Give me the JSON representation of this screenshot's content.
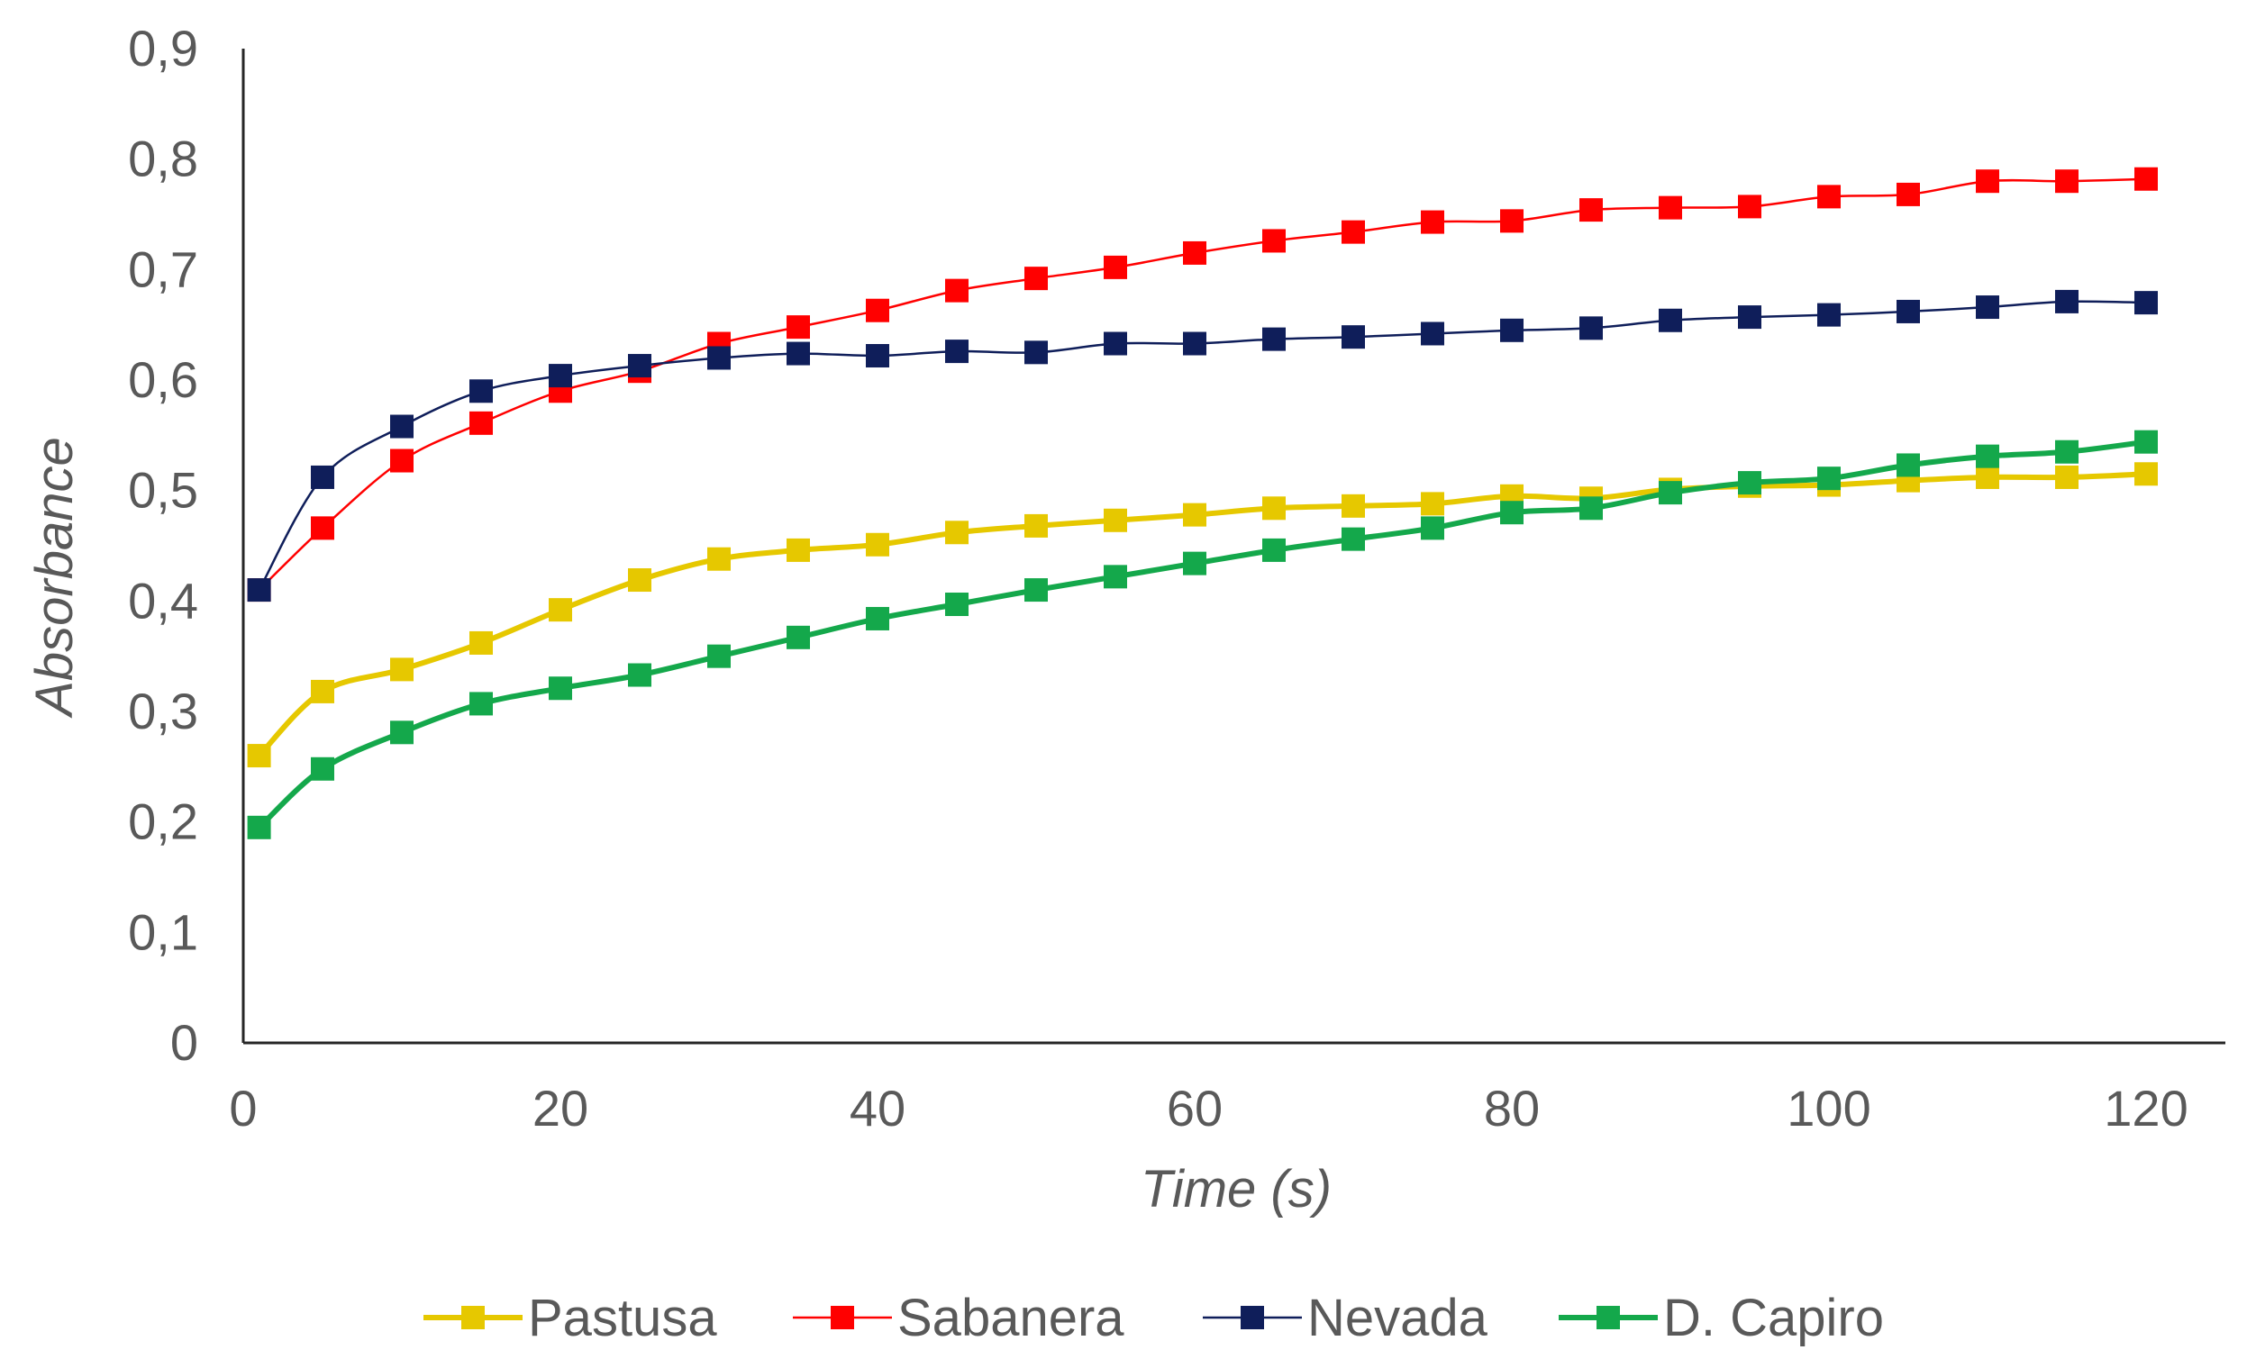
{
  "chart_data": {
    "type": "line",
    "title": "",
    "xlabel": "Time (s)",
    "ylabel": "Absorbance",
    "xlim": [
      0,
      125
    ],
    "ylim": [
      0,
      0.9
    ],
    "grid": false,
    "legend_position": "bottom",
    "x_ticks": [
      {
        "value": 0,
        "label": "0"
      },
      {
        "value": 20,
        "label": "20"
      },
      {
        "value": 40,
        "label": "40"
      },
      {
        "value": 60,
        "label": "60"
      },
      {
        "value": 80,
        "label": "80"
      },
      {
        "value": 100,
        "label": "100"
      },
      {
        "value": 120,
        "label": "120"
      }
    ],
    "y_ticks": [
      {
        "value": 0,
        "label": "0"
      },
      {
        "value": 0.1,
        "label": "0,1"
      },
      {
        "value": 0.2,
        "label": "0,2"
      },
      {
        "value": 0.3,
        "label": "0,3"
      },
      {
        "value": 0.4,
        "label": "0,4"
      },
      {
        "value": 0.5,
        "label": "0,5"
      },
      {
        "value": 0.6,
        "label": "0,6"
      },
      {
        "value": 0.7,
        "label": "0,7"
      },
      {
        "value": 0.8,
        "label": "0,8"
      },
      {
        "value": 0.9,
        "label": "0,9"
      }
    ],
    "x": [
      1,
      5,
      10,
      15,
      20,
      25,
      30,
      35,
      40,
      45,
      50,
      55,
      60,
      65,
      70,
      75,
      80,
      85,
      90,
      95,
      100,
      105,
      110,
      115,
      120
    ],
    "series": [
      {
        "name": "Pastusa",
        "color": "#E6C800",
        "values": [
          0.26,
          0.318,
          0.338,
          0.362,
          0.392,
          0.419,
          0.438,
          0.446,
          0.451,
          0.462,
          0.468,
          0.473,
          0.478,
          0.484,
          0.486,
          0.488,
          0.495,
          0.493,
          0.501,
          0.504,
          0.505,
          0.509,
          0.512,
          0.512,
          0.515
        ]
      },
      {
        "name": "Sabanera",
        "color": "#FF0000",
        "values": [
          0.41,
          0.466,
          0.527,
          0.561,
          0.59,
          0.608,
          0.633,
          0.648,
          0.663,
          0.681,
          0.692,
          0.702,
          0.715,
          0.726,
          0.734,
          0.743,
          0.744,
          0.754,
          0.756,
          0.757,
          0.766,
          0.768,
          0.78,
          0.78,
          0.782
        ]
      },
      {
        "name": "Nevada",
        "color": "#0F1E5A",
        "values": [
          0.41,
          0.512,
          0.558,
          0.59,
          0.604,
          0.613,
          0.62,
          0.624,
          0.622,
          0.626,
          0.625,
          0.633,
          0.633,
          0.637,
          0.639,
          0.642,
          0.645,
          0.647,
          0.654,
          0.657,
          0.659,
          0.662,
          0.666,
          0.671,
          0.67
        ]
      },
      {
        "name": "D. Capiro",
        "color": "#14A84B",
        "values": [
          0.195,
          0.248,
          0.281,
          0.307,
          0.321,
          0.333,
          0.35,
          0.367,
          0.384,
          0.397,
          0.41,
          0.422,
          0.434,
          0.446,
          0.456,
          0.466,
          0.48,
          0.484,
          0.498,
          0.507,
          0.511,
          0.523,
          0.531,
          0.535,
          0.544
        ]
      }
    ]
  }
}
